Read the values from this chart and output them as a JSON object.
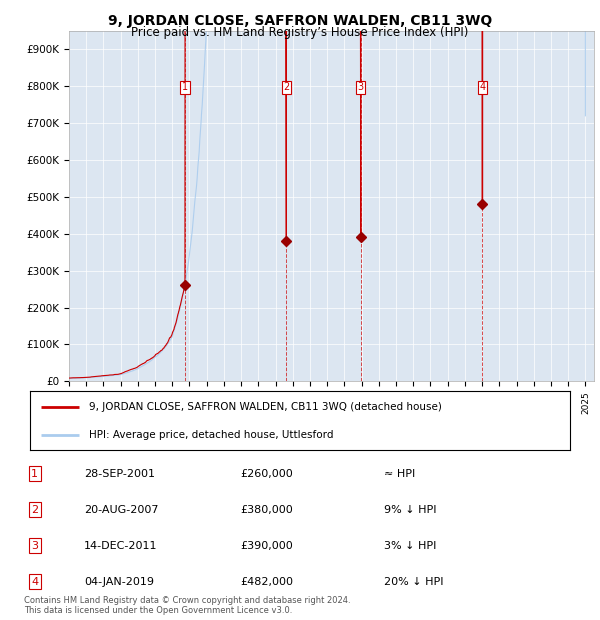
{
  "title": "9, JORDAN CLOSE, SAFFRON WALDEN, CB11 3WQ",
  "subtitle": "Price paid vs. HM Land Registry’s House Price Index (HPI)",
  "background_color": "#dce6f1",
  "ylim": [
    0,
    950000
  ],
  "yticks": [
    0,
    100000,
    200000,
    300000,
    400000,
    500000,
    600000,
    700000,
    800000,
    900000
  ],
  "ytick_labels": [
    "£0",
    "£100K",
    "£200K",
    "£300K",
    "£400K",
    "£500K",
    "£600K",
    "£700K",
    "£800K",
    "£900K"
  ],
  "xlim_start": 1995.0,
  "xlim_end": 2025.5,
  "sale_dates": [
    2001.74,
    2007.63,
    2011.95,
    2019.01
  ],
  "sale_prices": [
    260000,
    380000,
    390000,
    482000
  ],
  "sale_labels": [
    "1",
    "2",
    "3",
    "4"
  ],
  "legend_line1": "9, JORDAN CLOSE, SAFFRON WALDEN, CB11 3WQ (detached house)",
  "legend_line2": "HPI: Average price, detached house, Uttlesford",
  "table_rows": [
    [
      "1",
      "28-SEP-2001",
      "£260,000",
      "≈ HPI"
    ],
    [
      "2",
      "20-AUG-2007",
      "£380,000",
      "9% ↓ HPI"
    ],
    [
      "3",
      "14-DEC-2011",
      "£390,000",
      "3% ↓ HPI"
    ],
    [
      "4",
      "04-JAN-2019",
      "£482,000",
      "20% ↓ HPI"
    ]
  ],
  "footer": "Contains HM Land Registry data © Crown copyright and database right 2024.\nThis data is licensed under the Open Government Licence v3.0.",
  "red_color": "#cc0000",
  "blue_color": "#aaccee",
  "dashed_color": "#cc0000"
}
